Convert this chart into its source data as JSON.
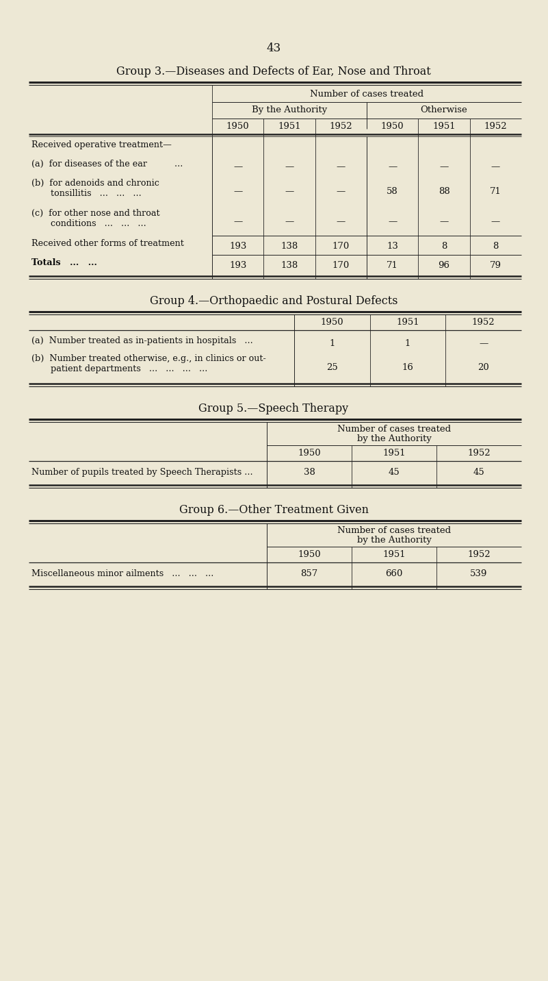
{
  "bg_color": "#ede8d5",
  "page_number": "43",
  "group3": {
    "title": "Group 3.—Diseases and Defects of Ear, Nose and Throat",
    "header1": "Number of cases treated",
    "header2a": "By the Authority",
    "header2b": "Otherwise",
    "years": [
      "1950",
      "1951",
      "1952",
      "1950",
      "1951",
      "1952"
    ],
    "rows": [
      {
        "label": "Received operative treatment—",
        "values": [
          "",
          "",
          "",
          "",
          "",
          ""
        ],
        "indent": false,
        "bold": false,
        "rule_above": false
      },
      {
        "label": "(a)  for diseases of the ear          ...",
        "values": [
          "—",
          "—",
          "—",
          "—",
          "—",
          "—"
        ],
        "indent": true,
        "bold": false,
        "rule_above": false,
        "multiline": false
      },
      {
        "label": "(b)  for adenoids and chronic\n       tonsillitis   ...   ...   ...",
        "values": [
          "—",
          "—",
          "—",
          "58",
          "88",
          "71"
        ],
        "indent": true,
        "bold": false,
        "rule_above": false,
        "multiline": true
      },
      {
        "label": "(c)  for other nose and throat\n       conditions   ...   ...   ...",
        "values": [
          "—",
          "—",
          "—",
          "—",
          "—",
          "—"
        ],
        "indent": true,
        "bold": false,
        "rule_above": false,
        "multiline": true
      },
      {
        "label": "Received other forms of treatment",
        "values": [
          "193",
          "138",
          "170",
          "13",
          "8",
          "8"
        ],
        "indent": false,
        "bold": false,
        "rule_above": true,
        "multiline": false
      },
      {
        "label": "Totals   ...   ...",
        "values": [
          "193",
          "138",
          "170",
          "71",
          "96",
          "79"
        ],
        "indent": false,
        "bold": true,
        "rule_above": true,
        "multiline": false
      }
    ]
  },
  "group4": {
    "title": "Group 4.—Orthopaedic and Postural Defects",
    "years": [
      "1950",
      "1951",
      "1952"
    ],
    "rows": [
      {
        "label": "(a)  Number treated as in-patients in hospitals   ...",
        "values": [
          "1",
          "1",
          "—"
        ],
        "multiline": false
      },
      {
        "label": "(b)  Number treated otherwise, e.g., in clinics or out-\n       patient departments   ...   ...   ...   ...",
        "values": [
          "25",
          "16",
          "20"
        ],
        "multiline": true
      }
    ]
  },
  "group5": {
    "title": "Group 5.—Speech Therapy",
    "header1": "Number of cases treated\nby the Authority",
    "years": [
      "1950",
      "1951",
      "1952"
    ],
    "rows": [
      {
        "label": "Number of pupils treated by Speech Therapists ...",
        "values": [
          "38",
          "45",
          "45"
        ],
        "multiline": false
      }
    ]
  },
  "group6": {
    "title": "Group 6.—Other Treatment Given",
    "header1": "Number of cases treated\nby the Authority",
    "years": [
      "1950",
      "1951",
      "1952"
    ],
    "rows": [
      {
        "label": "Miscellaneous minor ailments   ...   ...   ...",
        "values": [
          "857",
          "660",
          "539"
        ],
        "multiline": false
      }
    ]
  }
}
